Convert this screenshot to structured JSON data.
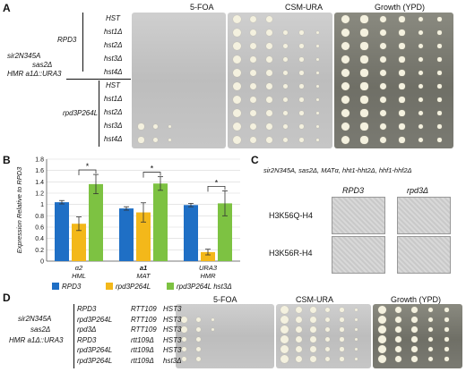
{
  "panel_a": {
    "letter": "A",
    "plate_titles": [
      "5-FOA",
      "CSM-URA",
      "Growth (YPD)"
    ],
    "strain_group": [
      "sir2N345A",
      "sas2Δ",
      "HMR a1Δ::URA3"
    ],
    "group1_label": "RPD3",
    "group2_label": "rpd3P264L",
    "rows": [
      "HST",
      "hst1Δ",
      "hst2Δ",
      "hst3Δ",
      "hst4Δ",
      "HST",
      "hst1Δ",
      "hst2Δ",
      "hst3Δ",
      "hst4Δ"
    ]
  },
  "panel_b": {
    "letter": "B",
    "chart_data": {
      "type": "bar",
      "ylabel": "Expression Relative to RPD3",
      "ylim": [
        0,
        1.8
      ],
      "yticks": [
        "0",
        "0.2",
        "0.4",
        "0.6",
        "0.8",
        "1",
        "1.2",
        "1.4",
        "1.6",
        "1.8"
      ],
      "categories": [
        [
          "α2",
          "HML"
        ],
        [
          "a1",
          "MAT"
        ],
        [
          "URA3",
          "HMR"
        ]
      ],
      "series": [
        {
          "name": "RPD3",
          "values": [
            1.04,
            0.93,
            0.99
          ],
          "errors": [
            0.03,
            0.03,
            0.03
          ],
          "color": "#1f6fc5"
        },
        {
          "name": "rpd3P264L",
          "values": [
            0.66,
            0.86,
            0.16
          ],
          "errors": [
            0.12,
            0.17,
            0.05
          ],
          "color": "#f3b81a"
        },
        {
          "name": "rpd3P264L hst3Δ",
          "values": [
            1.36,
            1.37,
            1.02
          ],
          "errors": [
            0.17,
            0.12,
            0.22
          ],
          "color": "#7dc242"
        }
      ],
      "significance": [
        "*",
        "*",
        "*"
      ]
    }
  },
  "panel_c": {
    "letter": "C",
    "title": "sir2N345A, sas2Δ, MATα, hht1-hht2Δ, hhf1-hhf2Δ",
    "columns": [
      "RPD3",
      "rpd3Δ"
    ],
    "rows": [
      "H3K56Q-H4",
      "H3K56R-H4"
    ]
  },
  "panel_d": {
    "letter": "D",
    "plate_titles": [
      "5-FOA",
      "CSM-URA",
      "Growth (YPD)"
    ],
    "strain_group": [
      "sir2N345A",
      "sas2Δ",
      "HMR a1Δ::URA3"
    ],
    "rows": [
      [
        "RPD3",
        "RTT109",
        "HST3"
      ],
      [
        "rpd3P264L",
        "RTT109",
        "HST3"
      ],
      [
        "rpd3Δ",
        "RTT109",
        "HST3"
      ],
      [
        "RPD3",
        "rtt109Δ",
        "HST3"
      ],
      [
        "rpd3P264L",
        "rtt109Δ",
        "HST3"
      ],
      [
        "rpd3P264L",
        "rtt109Δ",
        "hst3Δ"
      ]
    ]
  }
}
